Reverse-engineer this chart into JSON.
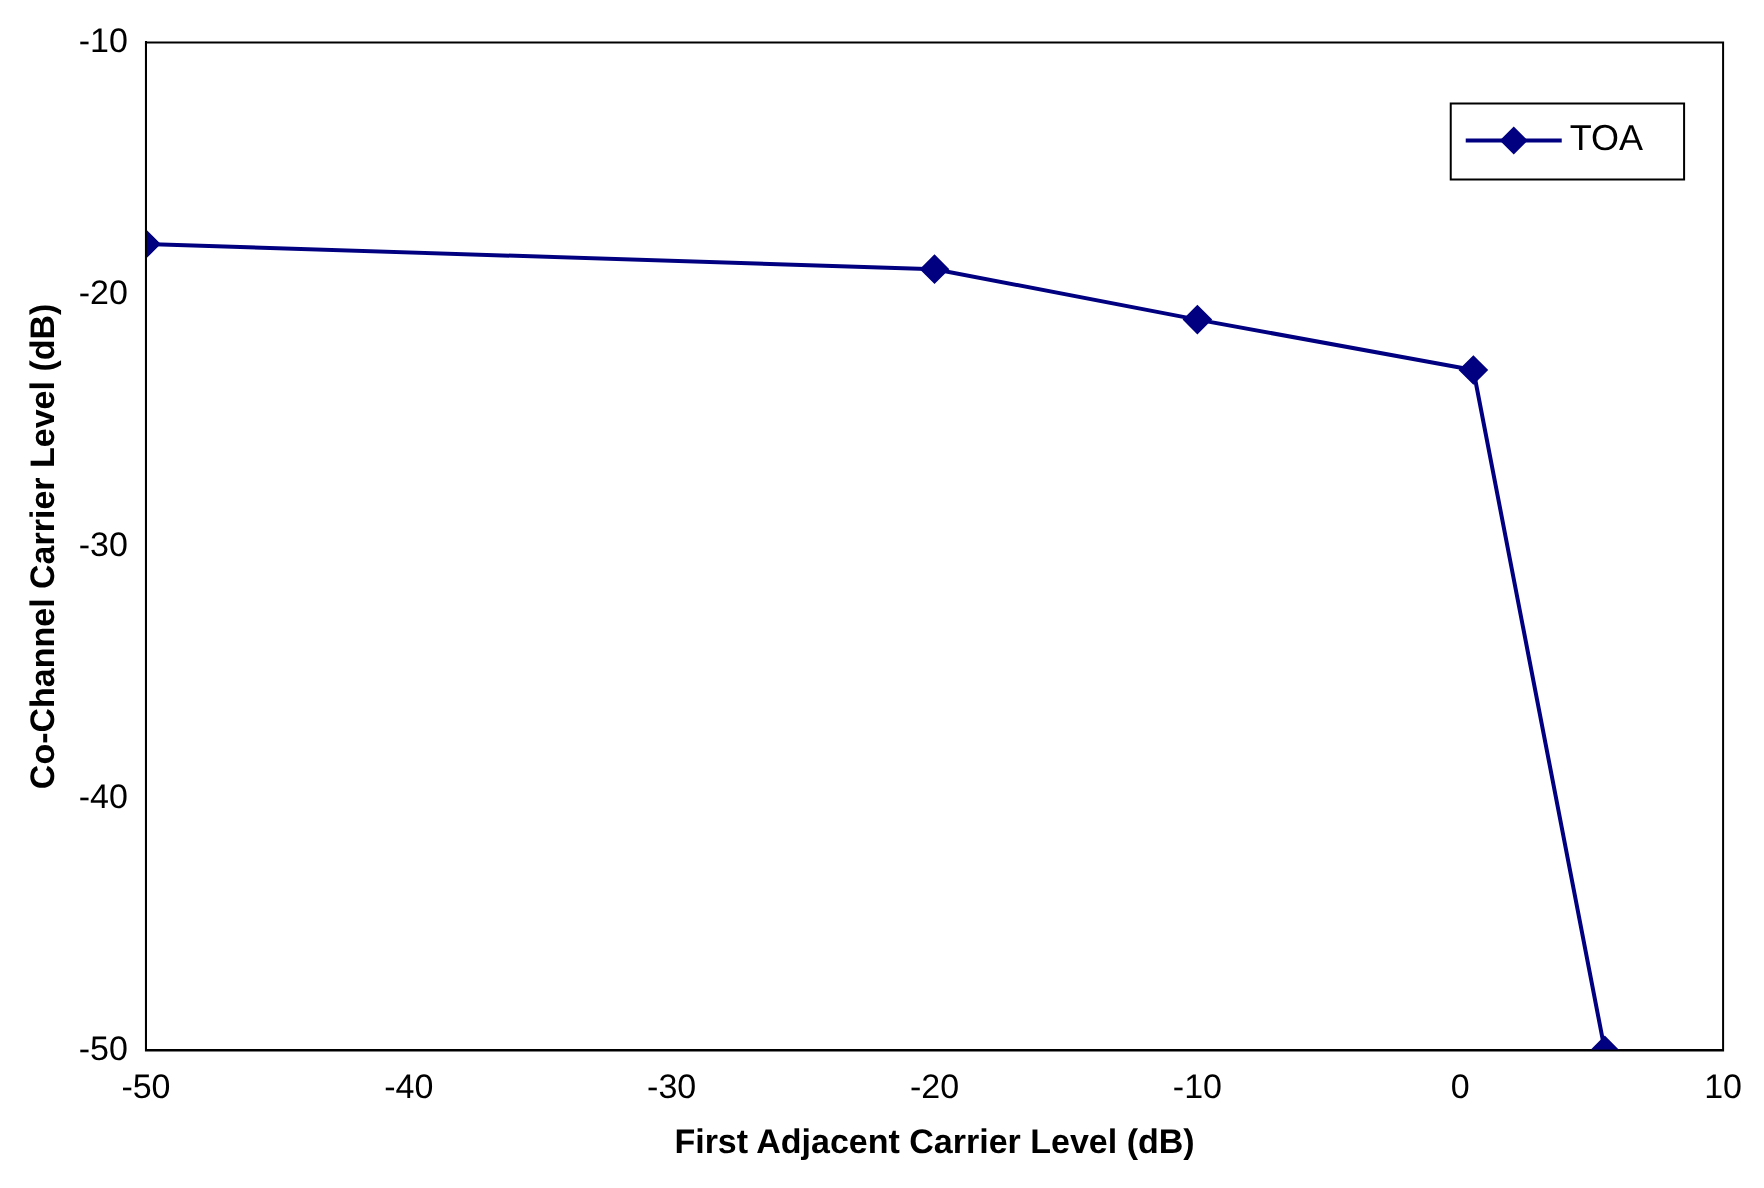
{
  "chart_data": {
    "type": "line",
    "xlabel": "First Adjacent Carrier Level (dB)",
    "ylabel": "Co-Channel Carrier Level (dB)",
    "x": [
      -50,
      -20,
      -10,
      0.5,
      5.5
    ],
    "series": [
      {
        "name": "TOA",
        "color": "#000080",
        "values": [
          -18,
          -19,
          -21,
          -23,
          -50
        ]
      }
    ],
    "xlim": [
      -50,
      10
    ],
    "xticks": [
      -50,
      -40,
      -30,
      -20,
      -10,
      0,
      10
    ],
    "ylim": [
      -50,
      -10
    ],
    "yticks": [
      -50,
      -40,
      -30,
      -20,
      -10
    ],
    "grid": false,
    "legend": "top right",
    "marker": "diamond",
    "line_style": "solid"
  }
}
